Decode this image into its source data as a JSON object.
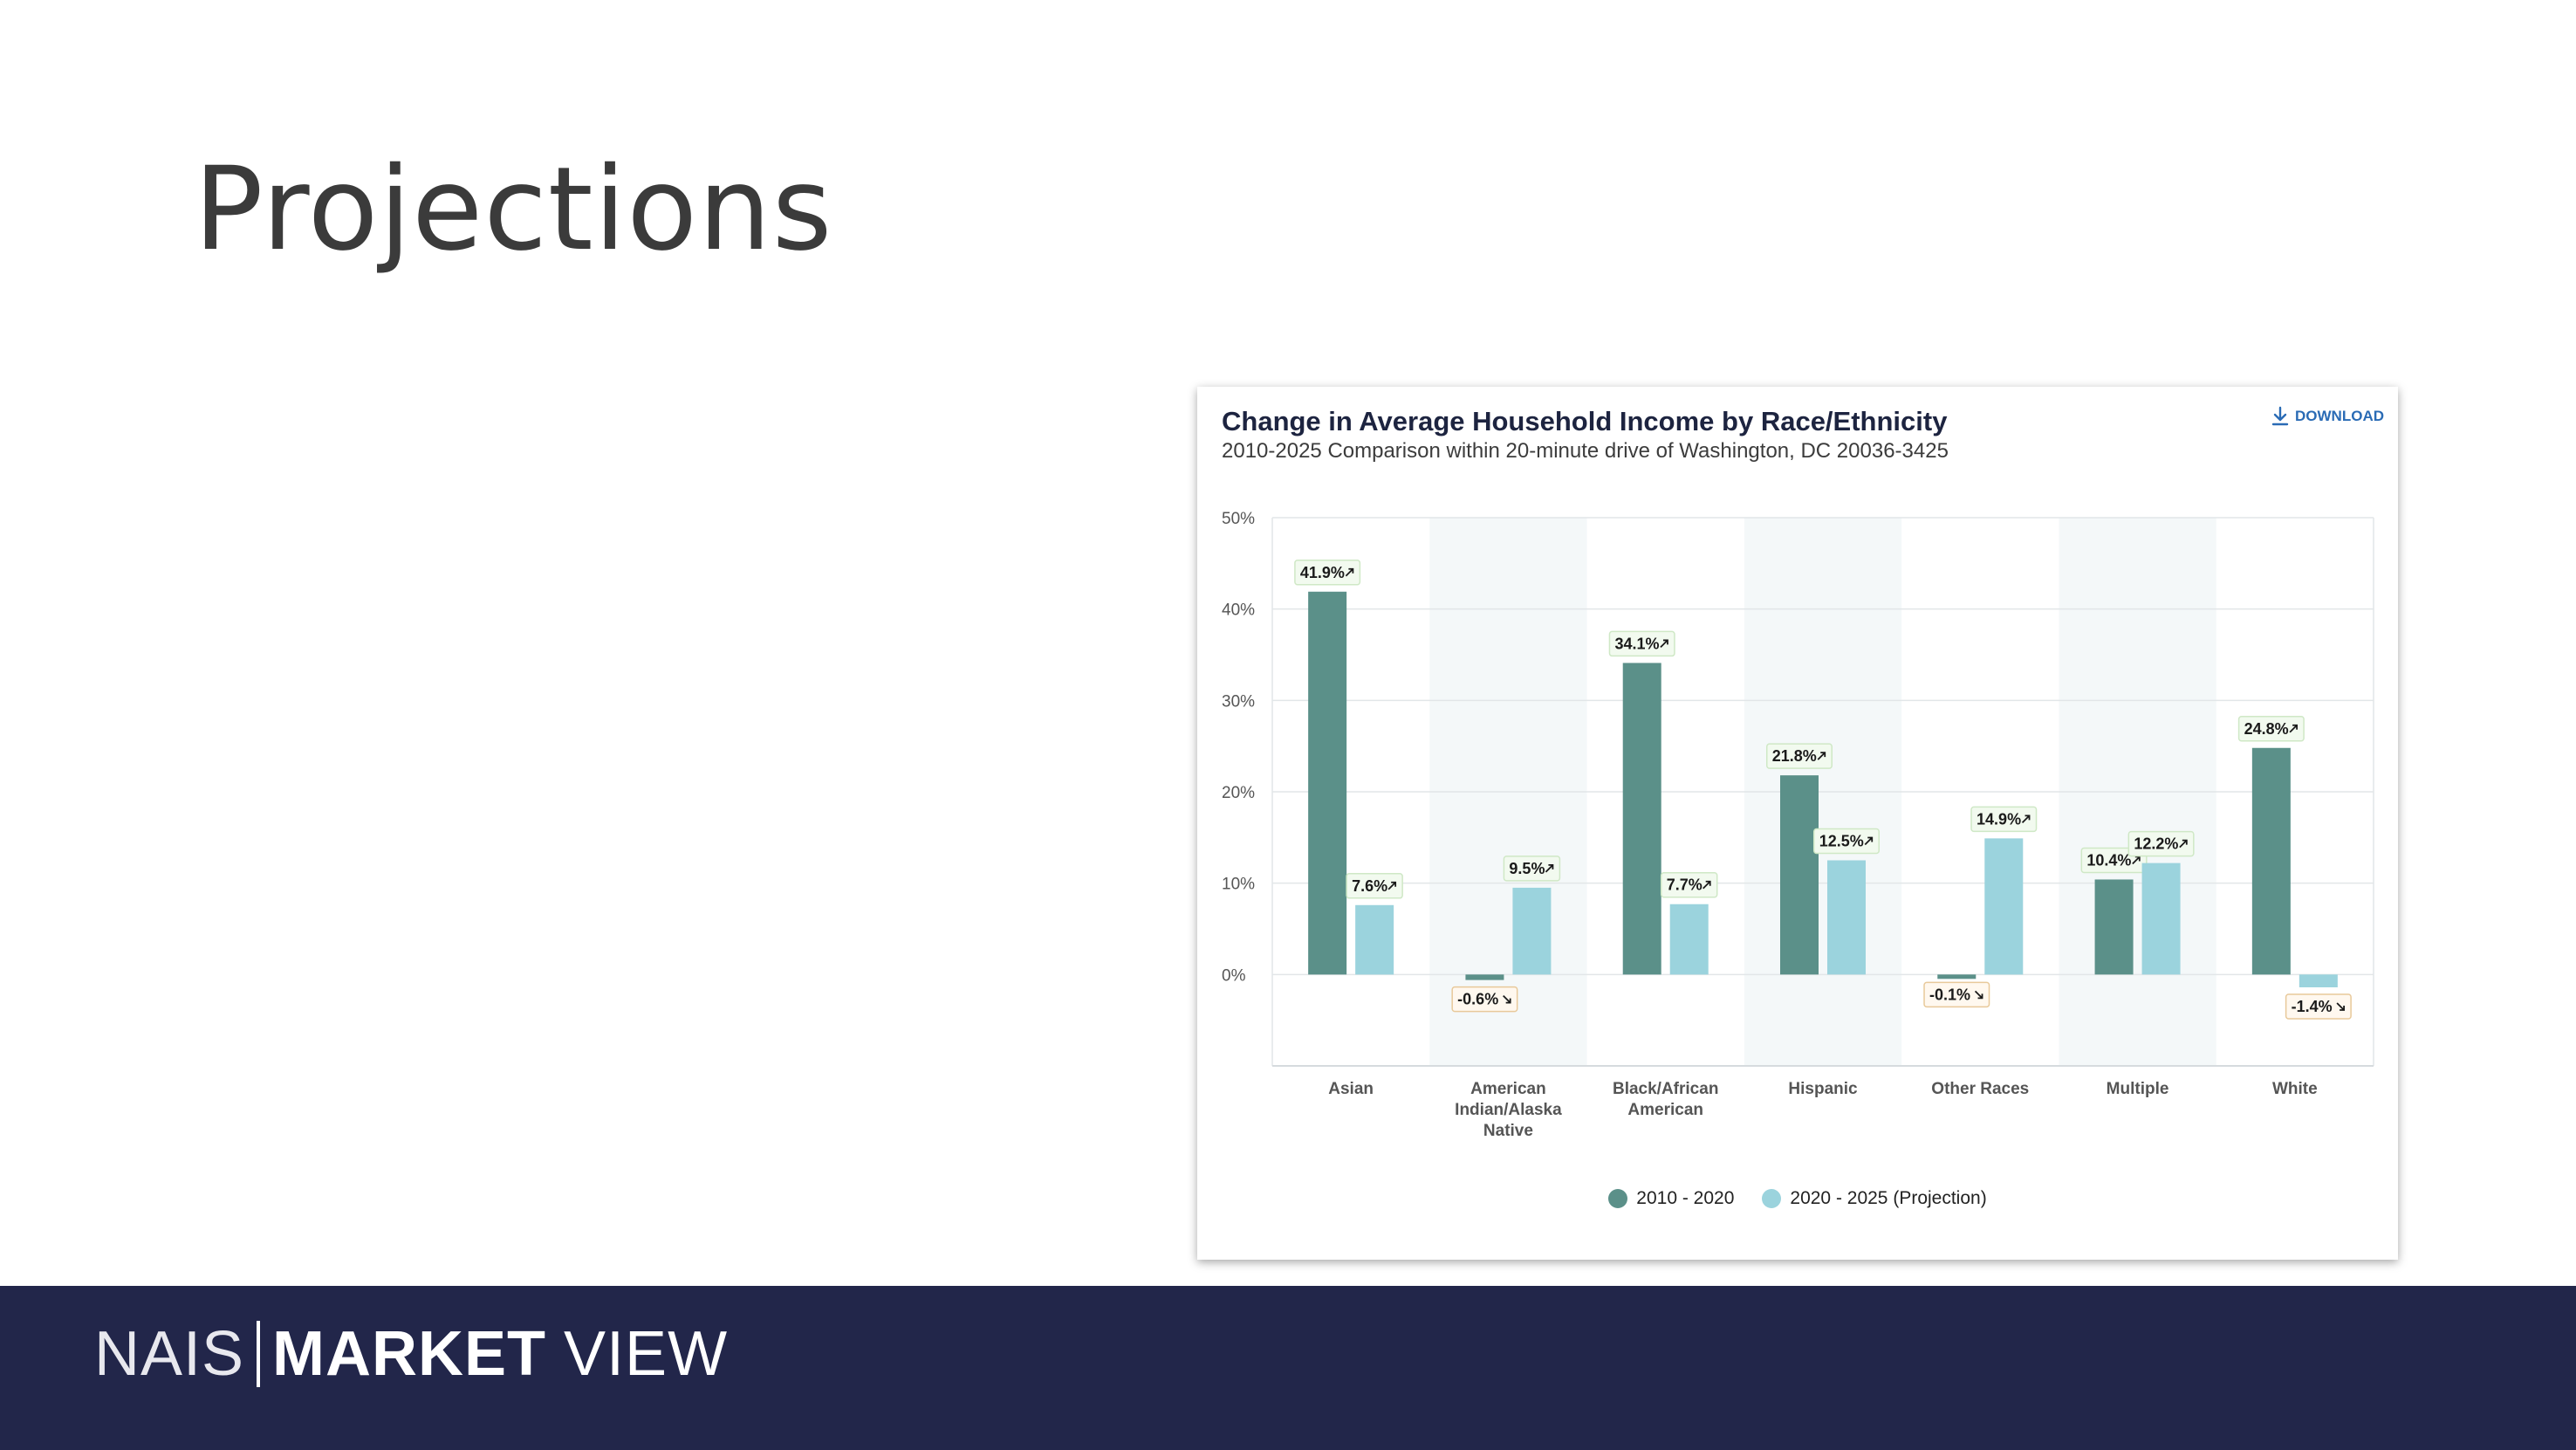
{
  "slide": {
    "title": "Projections"
  },
  "card": {
    "download_label": "DOWNLOAD"
  },
  "colors": {
    "series_2010_2020": "#5b9089",
    "series_2020_2025": "#9bd3dd",
    "band": "#f4f8f9",
    "footer": "#22264a"
  },
  "footer": {
    "logo_left": "NAIS",
    "logo_bold": "MARKET",
    "logo_right": "VIEW"
  },
  "chart_data": {
    "type": "bar",
    "title": "Change in Average Household Income by Race/Ethnicity",
    "subtitle": "2010-2025 Comparison within 20-minute drive of Washington, DC 20036-3425",
    "categories": [
      "Asian",
      "American Indian/Alaska Native",
      "Black/African American",
      "Hispanic",
      "Other Races",
      "Multiple",
      "White"
    ],
    "category_lines": [
      [
        "Asian"
      ],
      [
        "American",
        "Indian/Alaska",
        "Native"
      ],
      [
        "Black/African",
        "American"
      ],
      [
        "Hispanic"
      ],
      [
        "Other Races"
      ],
      [
        "Multiple"
      ],
      [
        "White"
      ]
    ],
    "series": [
      {
        "name": "2010 - 2020",
        "values": [
          41.9,
          -0.6,
          34.1,
          21.8,
          -0.1,
          10.4,
          24.8
        ],
        "labels": [
          "41.9%",
          "-0.6%",
          "34.1%",
          "21.8%",
          "-0.1%",
          "10.4%",
          "24.8%"
        ]
      },
      {
        "name": "2020 - 2025 (Projection)",
        "values": [
          7.6,
          9.5,
          7.7,
          12.5,
          14.9,
          12.2,
          -1.4
        ],
        "labels": [
          "7.6%",
          "9.5%",
          "7.7%",
          "12.5%",
          "14.9%",
          "12.2%",
          "-1.4%"
        ]
      }
    ],
    "yticks": [
      "50%",
      "40%",
      "30%",
      "20%",
      "10%",
      "0%"
    ],
    "ylim": [
      -10,
      50
    ],
    "grid": true,
    "legend": "bottom-center"
  }
}
